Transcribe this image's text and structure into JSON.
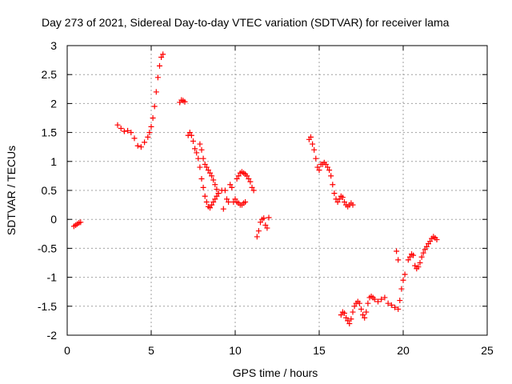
{
  "chart_data": {
    "type": "scatter",
    "title": "Day 273 of 2021, Sidereal Day-to-day VTEC variation (SDTVAR) for receiver lama",
    "xlabel": "GPS time / hours",
    "ylabel": "SDTVAR / TECUs",
    "xlim": [
      0,
      25
    ],
    "ylim": [
      -2,
      3
    ],
    "xticks": [
      0,
      5,
      10,
      15,
      20,
      25
    ],
    "yticks": [
      -2,
      -1.5,
      -1,
      -0.5,
      0,
      0.5,
      1,
      1.5,
      2,
      2.5,
      3
    ],
    "xtick_labels": [
      "0",
      "5",
      "10",
      "15",
      "20",
      "25"
    ],
    "ytick_labels": [
      "-2",
      "-1.5",
      "-1",
      "-0.5",
      "0",
      "0.5",
      "1",
      "1.5",
      "2",
      "2.5",
      "3"
    ],
    "grid": true,
    "marker": "plus",
    "color": "#ff0000",
    "series": [
      {
        "x": [
          0.4,
          0.5,
          0.6,
          0.7,
          0.8
        ],
        "y": [
          -0.12,
          -0.1,
          -0.08,
          -0.06,
          -0.05
        ]
      },
      {
        "x": [
          3.0,
          3.2,
          3.4,
          3.6,
          3.8,
          4.0,
          4.2,
          4.4,
          4.6,
          4.8,
          4.9,
          5.0,
          5.1,
          5.2,
          5.3,
          5.4,
          5.5,
          5.6,
          5.7
        ],
        "y": [
          1.63,
          1.57,
          1.52,
          1.53,
          1.5,
          1.4,
          1.27,
          1.25,
          1.33,
          1.42,
          1.5,
          1.6,
          1.75,
          1.95,
          2.2,
          2.45,
          2.65,
          2.8,
          2.85
        ]
      },
      {
        "x": [
          6.7,
          6.8,
          6.9,
          7.0
        ],
        "y": [
          2.02,
          2.06,
          2.05,
          2.03
        ]
      },
      {
        "x": [
          7.2,
          7.3,
          7.4,
          7.5,
          7.6,
          7.7,
          7.8,
          7.9,
          8.0,
          8.1,
          8.2,
          8.3,
          8.4,
          8.5,
          8.6,
          8.7,
          8.8,
          8.9,
          9.0,
          9.2,
          9.4
        ],
        "y": [
          1.45,
          1.5,
          1.45,
          1.35,
          1.22,
          1.15,
          1.05,
          0.9,
          0.7,
          0.55,
          0.4,
          0.3,
          0.22,
          0.2,
          0.25,
          0.3,
          0.35,
          0.4,
          0.45,
          0.5,
          0.5
        ]
      },
      {
        "x": [
          7.9,
          8.0,
          8.1,
          8.2,
          8.3,
          8.4,
          8.5,
          8.6,
          8.7,
          8.8,
          8.9,
          9.0
        ],
        "y": [
          1.3,
          1.2,
          1.05,
          0.95,
          0.9,
          0.85,
          0.8,
          0.75,
          0.68,
          0.6,
          0.52,
          0.45
        ]
      },
      {
        "x": [
          9.3,
          9.5,
          9.6,
          9.7,
          9.8
        ],
        "y": [
          0.18,
          0.35,
          0.3,
          0.6,
          0.55
        ]
      },
      {
        "x": [
          9.9,
          10.0,
          10.1,
          10.2,
          10.3,
          10.4,
          10.5,
          10.6,
          10.7,
          10.8,
          10.9,
          11.0,
          11.1
        ],
        "y": [
          0.3,
          0.35,
          0.7,
          0.75,
          0.8,
          0.82,
          0.8,
          0.78,
          0.75,
          0.7,
          0.65,
          0.55,
          0.5
        ]
      },
      {
        "x": [
          10.1,
          10.2,
          10.3,
          10.4,
          10.5,
          10.6
        ],
        "y": [
          0.3,
          0.28,
          0.25,
          0.25,
          0.28,
          0.3
        ]
      },
      {
        "x": [
          11.3,
          11.4,
          11.5,
          11.6,
          11.7,
          11.8,
          11.9,
          12.0
        ],
        "y": [
          -0.3,
          -0.2,
          -0.05,
          0.0,
          0.02,
          -0.1,
          -0.15,
          0.03
        ]
      },
      {
        "x": [
          14.4,
          14.5,
          14.6,
          14.7,
          14.8,
          14.9,
          15.0,
          15.1,
          15.2,
          15.3,
          15.4,
          15.5,
          15.6,
          15.7,
          15.8,
          15.9,
          16.0,
          16.1,
          16.2,
          16.3,
          16.4,
          16.5,
          16.6,
          16.7,
          16.8,
          16.9,
          17.0
        ],
        "y": [
          1.38,
          1.42,
          1.3,
          1.2,
          1.05,
          0.9,
          0.85,
          0.95,
          0.95,
          0.98,
          0.95,
          0.9,
          0.85,
          0.75,
          0.6,
          0.45,
          0.35,
          0.3,
          0.35,
          0.4,
          0.38,
          0.3,
          0.25,
          0.22,
          0.25,
          0.28,
          0.25
        ]
      },
      {
        "x": [
          16.3,
          16.4,
          16.5,
          16.6,
          16.7,
          16.8,
          16.9,
          17.0,
          17.1,
          17.2,
          17.3,
          17.4,
          17.5,
          17.6,
          17.7,
          17.8,
          17.9,
          18.0,
          18.1,
          18.2,
          18.3,
          18.5,
          18.7,
          18.9,
          19.1,
          19.3,
          19.5,
          19.7
        ],
        "y": [
          -1.65,
          -1.6,
          -1.62,
          -1.7,
          -1.75,
          -1.8,
          -1.72,
          -1.6,
          -1.5,
          -1.45,
          -1.42,
          -1.45,
          -1.55,
          -1.65,
          -1.7,
          -1.6,
          -1.45,
          -1.35,
          -1.33,
          -1.35,
          -1.38,
          -1.42,
          -1.38,
          -1.35,
          -1.45,
          -1.48,
          -1.52,
          -1.55
        ]
      },
      {
        "x": [
          19.6,
          19.7,
          19.8,
          19.9,
          20.0,
          20.1
        ],
        "y": [
          -0.55,
          -0.7,
          -1.4,
          -1.2,
          -1.05,
          -0.95
        ]
      },
      {
        "x": [
          20.3,
          20.4,
          20.5,
          20.6,
          20.7,
          20.8,
          20.9,
          21.0,
          21.1,
          21.2,
          21.3,
          21.4,
          21.5,
          21.6,
          21.7,
          21.8,
          21.9,
          22.0
        ],
        "y": [
          -0.7,
          -0.65,
          -0.6,
          -0.62,
          -0.8,
          -0.85,
          -0.82,
          -0.75,
          -0.65,
          -0.58,
          -0.52,
          -0.47,
          -0.42,
          -0.38,
          -0.33,
          -0.3,
          -0.32,
          -0.35
        ]
      }
    ]
  }
}
